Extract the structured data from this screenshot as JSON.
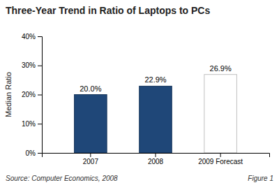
{
  "chart_data": {
    "type": "bar",
    "title": "Three-Year Trend in Ratio of Laptops to PCs",
    "categories": [
      "2007",
      "2008",
      "2009 Forecast"
    ],
    "values": [
      20.0,
      22.9,
      26.9
    ],
    "value_labels": [
      "20.0%",
      "22.9%",
      "26.9%"
    ],
    "data_labels": true,
    "colors": [
      "#1F4778",
      "#1F4778",
      "#FFFFFF"
    ],
    "ylabel": "Median Ratio",
    "ylim": [
      0,
      40
    ],
    "yticks": [
      {
        "value": 0,
        "label": "0%"
      },
      {
        "value": 10,
        "label": "10%"
      },
      {
        "value": 20,
        "label": "20%"
      },
      {
        "value": 30,
        "label": "30%"
      },
      {
        "value": 40,
        "label": "40%"
      }
    ],
    "grid": false,
    "annotations": [
      "Source: Computer Economics, 2008",
      "Figure 1"
    ]
  }
}
